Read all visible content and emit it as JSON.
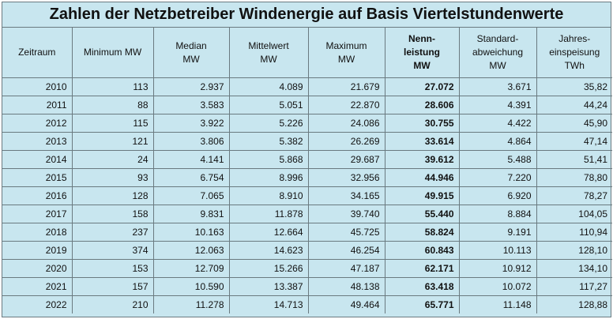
{
  "title": "Zahlen der Netzbetreiber Windenergie auf Basis Viertelstundenwerte",
  "headers": [
    {
      "lines": [
        "Zeitraum"
      ]
    },
    {
      "lines": [
        "Minimum  MW"
      ]
    },
    {
      "lines": [
        "Median",
        "MW"
      ]
    },
    {
      "lines": [
        "Mittelwert",
        "MW"
      ]
    },
    {
      "lines": [
        "Maximum",
        "MW"
      ]
    },
    {
      "lines": [
        "Nenn-",
        "leistung",
        "MW"
      ]
    },
    {
      "lines": [
        "Standard-",
        "abweichung",
        "MW"
      ]
    },
    {
      "lines": [
        "Jahres-",
        "einspeisung",
        "TWh"
      ]
    }
  ],
  "rows": [
    [
      "2010",
      "113",
      "2.937",
      "4.089",
      "21.679",
      "27.072",
      "3.671",
      "35,82"
    ],
    [
      "2011",
      "88",
      "3.583",
      "5.051",
      "22.870",
      "28.606",
      "4.391",
      "44,24"
    ],
    [
      "2012",
      "115",
      "3.922",
      "5.226",
      "24.086",
      "30.755",
      "4.422",
      "45,90"
    ],
    [
      "2013",
      "121",
      "3.806",
      "5.382",
      "26.269",
      "33.614",
      "4.864",
      "47,14"
    ],
    [
      "2014",
      "24",
      "4.141",
      "5.868",
      "29.687",
      "39.612",
      "5.488",
      "51,41"
    ],
    [
      "2015",
      "93",
      "6.754",
      "8.996",
      "32.956",
      "44.946",
      "7.220",
      "78,80"
    ],
    [
      "2016",
      "128",
      "7.065",
      "8.910",
      "34.165",
      "49.915",
      "6.920",
      "78,27"
    ],
    [
      "2017",
      "158",
      "9.831",
      "11.878",
      "39.740",
      "55.440",
      "8.884",
      "104,05"
    ],
    [
      "2018",
      "237",
      "10.163",
      "12.664",
      "45.725",
      "58.824",
      "9.191",
      "110,94"
    ],
    [
      "2019",
      "374",
      "12.063",
      "14.623",
      "46.254",
      "60.843",
      "10.113",
      "128,10"
    ],
    [
      "2020",
      "153",
      "12.709",
      "15.266",
      "47.187",
      "62.171",
      "10.912",
      "134,10"
    ],
    [
      "2021",
      "157",
      "10.590",
      "13.387",
      "48.138",
      "63.418",
      "10.072",
      "117,27"
    ],
    [
      "2022",
      "210",
      "11.278",
      "14.713",
      "49.464",
      "65.771",
      "11.148",
      "128,88"
    ]
  ],
  "bold_column_index": 5,
  "colors": {
    "background": "#c8e6ef",
    "grid": "#6a7a80",
    "text": "#111111"
  }
}
